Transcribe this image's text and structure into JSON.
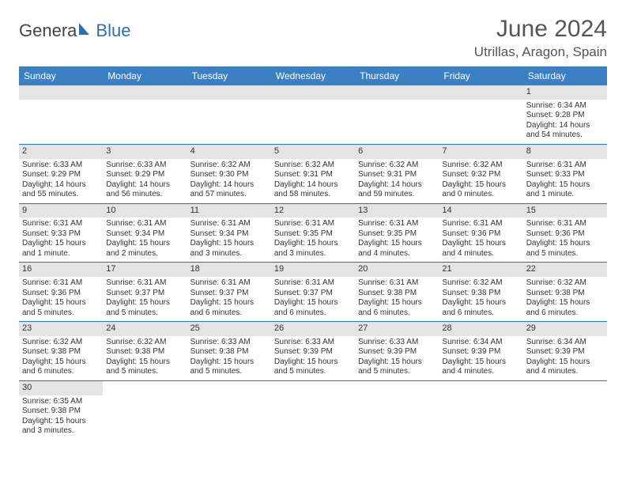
{
  "logo": {
    "part1": "Genera",
    "part2": "Blue"
  },
  "title": "June 2024",
  "location": "Utrillas, Aragon, Spain",
  "colors": {
    "header_bg": "#3a80c3",
    "header_text": "#ffffff",
    "row_divider": "#2f6fab",
    "daynum_bg": "#e4e4e4",
    "text": "#333333",
    "logo_blue": "#2f6fab"
  },
  "day_headers": [
    "Sunday",
    "Monday",
    "Tuesday",
    "Wednesday",
    "Thursday",
    "Friday",
    "Saturday"
  ],
  "weeks": [
    [
      {
        "n": ""
      },
      {
        "n": ""
      },
      {
        "n": ""
      },
      {
        "n": ""
      },
      {
        "n": ""
      },
      {
        "n": ""
      },
      {
        "n": "1",
        "sr": "Sunrise: 6:34 AM",
        "ss": "Sunset: 9:28 PM",
        "dl": "Daylight: 14 hours and 54 minutes."
      }
    ],
    [
      {
        "n": "2",
        "sr": "Sunrise: 6:33 AM",
        "ss": "Sunset: 9:29 PM",
        "dl": "Daylight: 14 hours and 55 minutes."
      },
      {
        "n": "3",
        "sr": "Sunrise: 6:33 AM",
        "ss": "Sunset: 9:29 PM",
        "dl": "Daylight: 14 hours and 56 minutes."
      },
      {
        "n": "4",
        "sr": "Sunrise: 6:32 AM",
        "ss": "Sunset: 9:30 PM",
        "dl": "Daylight: 14 hours and 57 minutes."
      },
      {
        "n": "5",
        "sr": "Sunrise: 6:32 AM",
        "ss": "Sunset: 9:31 PM",
        "dl": "Daylight: 14 hours and 58 minutes."
      },
      {
        "n": "6",
        "sr": "Sunrise: 6:32 AM",
        "ss": "Sunset: 9:31 PM",
        "dl": "Daylight: 14 hours and 59 minutes."
      },
      {
        "n": "7",
        "sr": "Sunrise: 6:32 AM",
        "ss": "Sunset: 9:32 PM",
        "dl": "Daylight: 15 hours and 0 minutes."
      },
      {
        "n": "8",
        "sr": "Sunrise: 6:31 AM",
        "ss": "Sunset: 9:33 PM",
        "dl": "Daylight: 15 hours and 1 minute."
      }
    ],
    [
      {
        "n": "9",
        "sr": "Sunrise: 6:31 AM",
        "ss": "Sunset: 9:33 PM",
        "dl": "Daylight: 15 hours and 1 minute."
      },
      {
        "n": "10",
        "sr": "Sunrise: 6:31 AM",
        "ss": "Sunset: 9:34 PM",
        "dl": "Daylight: 15 hours and 2 minutes."
      },
      {
        "n": "11",
        "sr": "Sunrise: 6:31 AM",
        "ss": "Sunset: 9:34 PM",
        "dl": "Daylight: 15 hours and 3 minutes."
      },
      {
        "n": "12",
        "sr": "Sunrise: 6:31 AM",
        "ss": "Sunset: 9:35 PM",
        "dl": "Daylight: 15 hours and 3 minutes."
      },
      {
        "n": "13",
        "sr": "Sunrise: 6:31 AM",
        "ss": "Sunset: 9:35 PM",
        "dl": "Daylight: 15 hours and 4 minutes."
      },
      {
        "n": "14",
        "sr": "Sunrise: 6:31 AM",
        "ss": "Sunset: 9:36 PM",
        "dl": "Daylight: 15 hours and 4 minutes."
      },
      {
        "n": "15",
        "sr": "Sunrise: 6:31 AM",
        "ss": "Sunset: 9:36 PM",
        "dl": "Daylight: 15 hours and 5 minutes."
      }
    ],
    [
      {
        "n": "16",
        "sr": "Sunrise: 6:31 AM",
        "ss": "Sunset: 9:36 PM",
        "dl": "Daylight: 15 hours and 5 minutes."
      },
      {
        "n": "17",
        "sr": "Sunrise: 6:31 AM",
        "ss": "Sunset: 9:37 PM",
        "dl": "Daylight: 15 hours and 5 minutes."
      },
      {
        "n": "18",
        "sr": "Sunrise: 6:31 AM",
        "ss": "Sunset: 9:37 PM",
        "dl": "Daylight: 15 hours and 6 minutes."
      },
      {
        "n": "19",
        "sr": "Sunrise: 6:31 AM",
        "ss": "Sunset: 9:37 PM",
        "dl": "Daylight: 15 hours and 6 minutes."
      },
      {
        "n": "20",
        "sr": "Sunrise: 6:31 AM",
        "ss": "Sunset: 9:38 PM",
        "dl": "Daylight: 15 hours and 6 minutes."
      },
      {
        "n": "21",
        "sr": "Sunrise: 6:32 AM",
        "ss": "Sunset: 9:38 PM",
        "dl": "Daylight: 15 hours and 6 minutes."
      },
      {
        "n": "22",
        "sr": "Sunrise: 6:32 AM",
        "ss": "Sunset: 9:38 PM",
        "dl": "Daylight: 15 hours and 6 minutes."
      }
    ],
    [
      {
        "n": "23",
        "sr": "Sunrise: 6:32 AM",
        "ss": "Sunset: 9:38 PM",
        "dl": "Daylight: 15 hours and 6 minutes."
      },
      {
        "n": "24",
        "sr": "Sunrise: 6:32 AM",
        "ss": "Sunset: 9:38 PM",
        "dl": "Daylight: 15 hours and 5 minutes."
      },
      {
        "n": "25",
        "sr": "Sunrise: 6:33 AM",
        "ss": "Sunset: 9:38 PM",
        "dl": "Daylight: 15 hours and 5 minutes."
      },
      {
        "n": "26",
        "sr": "Sunrise: 6:33 AM",
        "ss": "Sunset: 9:39 PM",
        "dl": "Daylight: 15 hours and 5 minutes."
      },
      {
        "n": "27",
        "sr": "Sunrise: 6:33 AM",
        "ss": "Sunset: 9:39 PM",
        "dl": "Daylight: 15 hours and 5 minutes."
      },
      {
        "n": "28",
        "sr": "Sunrise: 6:34 AM",
        "ss": "Sunset: 9:39 PM",
        "dl": "Daylight: 15 hours and 4 minutes."
      },
      {
        "n": "29",
        "sr": "Sunrise: 6:34 AM",
        "ss": "Sunset: 9:39 PM",
        "dl": "Daylight: 15 hours and 4 minutes."
      }
    ],
    [
      {
        "n": "30",
        "sr": "Sunrise: 6:35 AM",
        "ss": "Sunset: 9:38 PM",
        "dl": "Daylight: 15 hours and 3 minutes."
      },
      {
        "n": ""
      },
      {
        "n": ""
      },
      {
        "n": ""
      },
      {
        "n": ""
      },
      {
        "n": ""
      },
      {
        "n": ""
      }
    ]
  ]
}
